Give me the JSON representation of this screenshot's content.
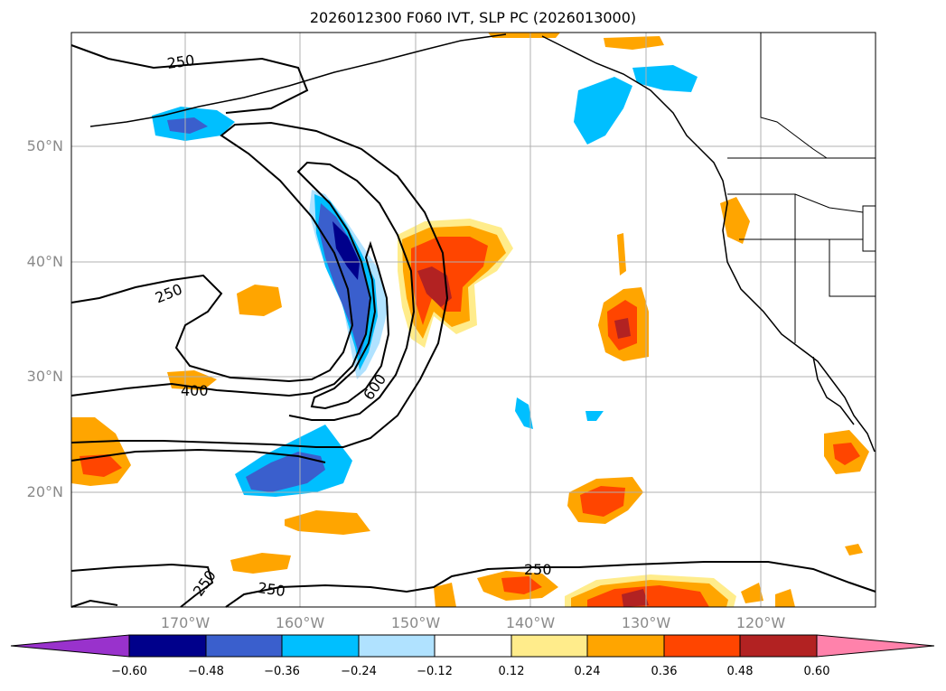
{
  "title": "2026012300 F060 IVT, SLP PC (2026013000)",
  "lat_labels": [
    "50°N",
    "40°N",
    "30°N",
    "20°N"
  ],
  "lon_labels": [
    "170°W",
    "160°W",
    "150°W",
    "140°W",
    "130°W",
    "120°W"
  ],
  "contour_labels": [
    "250",
    "250",
    "400",
    "600",
    "250",
    "250",
    "250"
  ],
  "colorbar": {
    "colors": [
      "#9932cc",
      "#00008b",
      "#3a5fcd",
      "#00bfff",
      "#b0e2ff",
      "#ffffff",
      "#ffec8b",
      "#ffa500",
      "#ff4500",
      "#b22222",
      "#ff82ab"
    ],
    "ticks": [
      "−0.60",
      "−0.48",
      "−0.36",
      "−0.24",
      "−0.12",
      "0.12",
      "0.24",
      "0.36",
      "0.48",
      "0.60"
    ]
  },
  "map_colors": {
    "ocean": "#ffffff",
    "grid": "#b0b0b0",
    "contour": "#000000"
  }
}
